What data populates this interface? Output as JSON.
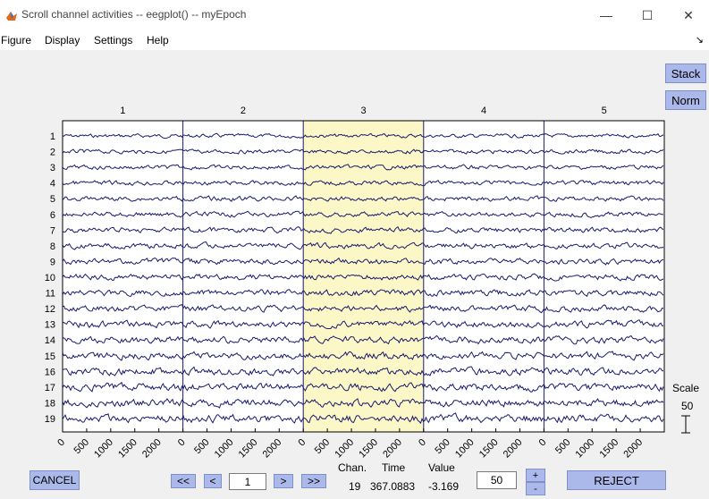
{
  "window": {
    "title": "Scroll channel activities -- eegplot() -- myEpoch"
  },
  "menu": [
    "Figure",
    "Display",
    "Settings",
    "Help"
  ],
  "side_buttons": {
    "stack": "Stack",
    "norm": "Norm"
  },
  "epochs": [
    "1",
    "2",
    "3",
    "4",
    "5"
  ],
  "highlighted_epoch": "3",
  "channels": [
    "1",
    "2",
    "3",
    "4",
    "5",
    "6",
    "7",
    "8",
    "9",
    "10",
    "11",
    "12",
    "13",
    "14",
    "15",
    "16",
    "17",
    "18",
    "19"
  ],
  "x_ticks": [
    "0",
    "500",
    "1000",
    "1500",
    "2000"
  ],
  "scale": {
    "label": "Scale",
    "value": "50"
  },
  "nav": {
    "first": "<<",
    "prev": "<",
    "page": "1",
    "next": ">",
    "last": ">>",
    "cancel": "CANCEL",
    "reject": "REJECT",
    "spacing": "50",
    "plus": "+",
    "minus": "-"
  },
  "readout": {
    "chan_label": "Chan.",
    "time_label": "Time",
    "value_label": "Value",
    "chan": "19",
    "time": "367.0883",
    "value": "-3.169"
  },
  "colors": {
    "trace": "#1a1a6e",
    "highlight": "#fbf7c6",
    "button": "#aab8ea",
    "epoch_divider": "#1a1a6e"
  }
}
